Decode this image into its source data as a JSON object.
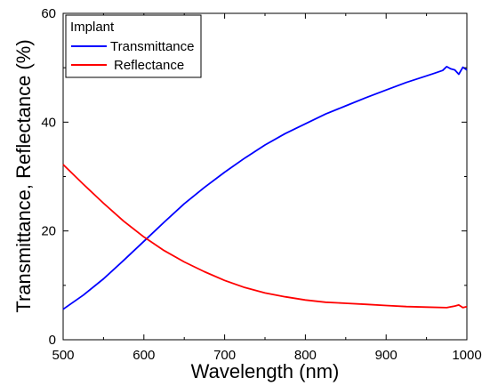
{
  "chart_data": {
    "type": "line",
    "title": "",
    "xlabel": "Wavelength (nm)",
    "ylabel": "Transmittance, Reflectance (%)",
    "xlim": [
      500,
      1000
    ],
    "ylim": [
      0,
      60
    ],
    "xticks": [
      500,
      600,
      700,
      800,
      900,
      1000
    ],
    "yticks": [
      0,
      20,
      40,
      60
    ],
    "grid": false,
    "legend": {
      "title": "Implant",
      "placement": "top-left",
      "entries": [
        "Transmittance",
        "Reflectance"
      ]
    },
    "series": [
      {
        "name": "Transmittance",
        "color": "#0000ff",
        "x": [
          500,
          525,
          550,
          575,
          600,
          625,
          650,
          675,
          700,
          725,
          750,
          775,
          800,
          825,
          850,
          875,
          900,
          925,
          950,
          960,
          970,
          975,
          980,
          985,
          990,
          995,
          1000
        ],
        "y": [
          5.6,
          8.2,
          11.2,
          14.6,
          18.1,
          21.6,
          25.0,
          28.0,
          30.8,
          33.4,
          35.8,
          37.9,
          39.7,
          41.5,
          43.0,
          44.5,
          45.9,
          47.3,
          48.5,
          49.0,
          49.5,
          50.2,
          49.8,
          49.6,
          48.8,
          50.1,
          49.6
        ]
      },
      {
        "name": "Reflectance",
        "color": "#ff0000",
        "x": [
          500,
          525,
          550,
          575,
          600,
          625,
          650,
          675,
          700,
          725,
          750,
          775,
          800,
          825,
          850,
          875,
          900,
          925,
          950,
          975,
          985,
          990,
          995,
          1000
        ],
        "y": [
          32.2,
          28.6,
          25.1,
          21.8,
          18.9,
          16.4,
          14.3,
          12.5,
          10.9,
          9.6,
          8.6,
          7.9,
          7.3,
          6.9,
          6.7,
          6.5,
          6.3,
          6.1,
          6.0,
          5.9,
          6.2,
          6.4,
          5.9,
          6.1
        ]
      }
    ]
  }
}
